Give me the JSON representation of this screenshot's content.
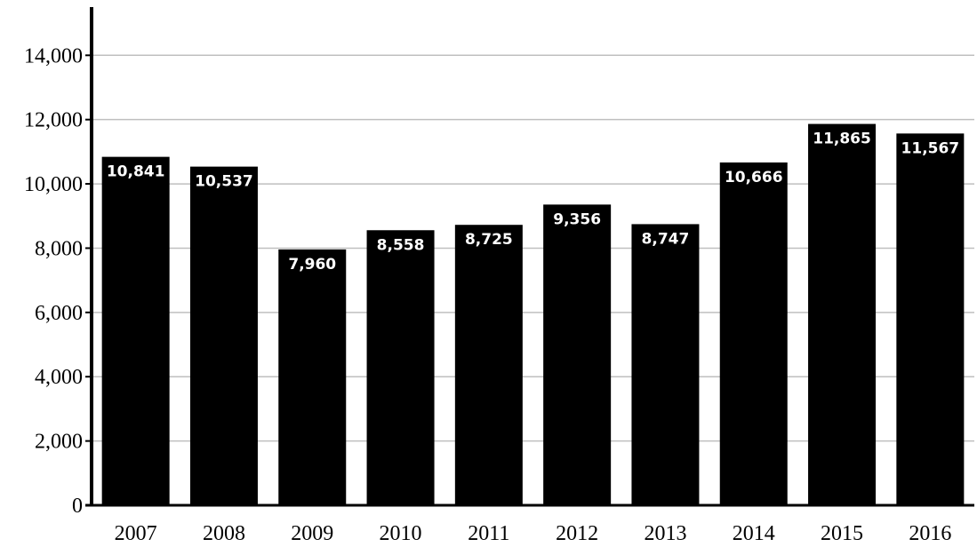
{
  "chart_data": {
    "type": "bar",
    "categories": [
      "2007",
      "2008",
      "2009",
      "2010",
      "2011",
      "2012",
      "2013",
      "2014",
      "2015",
      "2016"
    ],
    "values": [
      10841,
      10537,
      7960,
      8558,
      8725,
      9356,
      8747,
      10666,
      11865,
      11567
    ],
    "value_labels": [
      "10,841",
      "10,537",
      "7,960",
      "8,558",
      "8,725",
      "9,356",
      "8,747",
      "10,666",
      "11,865",
      "11,567"
    ],
    "yticks": [
      0,
      2000,
      4000,
      6000,
      8000,
      10000,
      12000,
      14000
    ],
    "ytick_labels": [
      "0",
      "2,000",
      "4,000",
      "6,000",
      "8,000",
      "10,000",
      "12,000",
      "14,000"
    ],
    "ylim": [
      0,
      15500
    ],
    "grid": true,
    "legend": "none",
    "bar_color": "#000000",
    "label_color": "#ffffff",
    "grid_color": "#bfbfbf",
    "title": "",
    "xlabel": "",
    "ylabel": ""
  }
}
